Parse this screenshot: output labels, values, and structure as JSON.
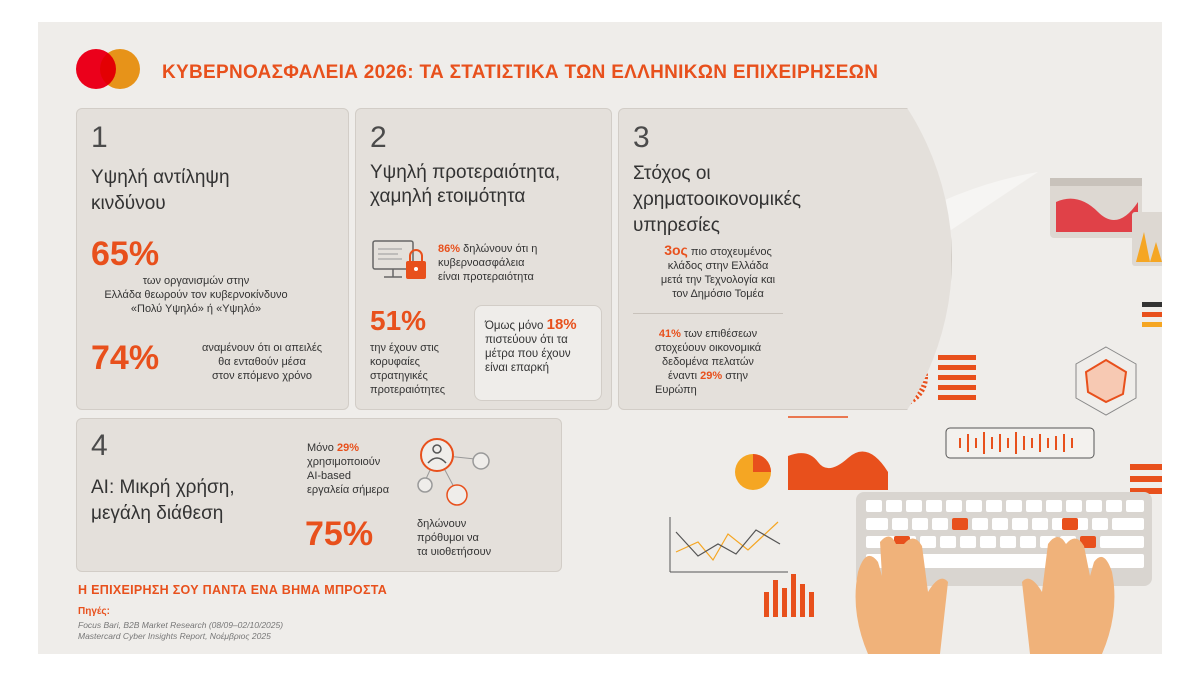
{
  "header": {
    "title": "ΚΥΒΕΡΝΟΑΣΦΑΛΕΙΑ 2026: ΤΑ ΣΤΑΤΙΣΤΙΚΑ ΤΩΝ ΕΛΛΗΝΙΚΩΝ ΕΠΙΧΕΙΡΗΣΕΩΝ"
  },
  "card1": {
    "number": "1",
    "heading_line1": "Υψηλή αντίληψη",
    "heading_line2": "κινδύνου",
    "stat1_value": "65%",
    "stat1_line1": "των οργανισμών στην",
    "stat1_line2": "Ελλάδα θεωρούν τον κυβερνοκίνδυνο",
    "stat1_line3": "«Πολύ Υψηλό» ή «Υψηλό»",
    "stat2_value": "74%",
    "stat2_line1": "αναμένουν ότι οι απειλές",
    "stat2_line2": "θα ενταθούν μέσα",
    "stat2_line3": "στον επόμενο χρόνο"
  },
  "card2": {
    "number": "2",
    "heading_line1": "Υψηλή προτεραιότητα,",
    "heading_line2": "χαμηλή ετοιμότητα",
    "stat1_value": "86%",
    "stat1_line1": "δηλώνουν ότι η",
    "stat1_line2": "κυβερνοασφάλεια",
    "stat1_line3": "είναι προτεραιότητα",
    "stat2_value": "51%",
    "stat2_line1": "την έχουν στις",
    "stat2_line2": "κορυφαίες",
    "stat2_line3": "στρατηγικές",
    "stat2_line4": "προτεραιότητες",
    "box_prefix": "Όμως μόνο",
    "box_value": "18%",
    "box_line1": "πιστεύουν ότι τα",
    "box_line2": "μέτρα που έχουν",
    "box_line3": "είναι επαρκή"
  },
  "card3": {
    "number": "3",
    "heading_line1": "Στόχος οι",
    "heading_line2": "χρηματοοικονομικές",
    "heading_line3": "υπηρεσίες",
    "rank_value": "3ος",
    "rank_line1": "πιο στοχευμένος",
    "rank_line2": "κλάδος στην Ελλάδα",
    "rank_line3": "μετά την Τεχνολογία και",
    "rank_line4": "τον Δημόσιο Τομέα",
    "stat_value": "41%",
    "stat_line1_rest": "των επιθέσεων",
    "stat_line2": "στοχεύουν οικονομικά",
    "stat_line3": "δεδομένα πελατών",
    "stat_line4_pre": "έναντι",
    "stat_line4_value": "29%",
    "stat_line4_post": "στην",
    "stat_line5": "Ευρώπη"
  },
  "card4": {
    "number": "4",
    "heading_line1": "AI: Μικρή χρήση,",
    "heading_line2": "μεγάλη διάθεση",
    "stat1_prefix": "Μόνο",
    "stat1_value": "29%",
    "stat1_line1": "χρησιμοποιούν",
    "stat1_line2": "AI-based",
    "stat1_line3": "εργαλεία σήμερα",
    "stat2_value": "75%",
    "stat2_line1": "δηλώνουν",
    "stat2_line2": "πρόθυμοι να",
    "stat2_line3": "τα υιοθετήσουν"
  },
  "footer": {
    "tagline": "Η ΕΠΙΧΕΙΡΗΣΗ ΣΟΥ ΠΑΝΤΑ ΕΝΑ ΒΗΜΑ ΜΠΡΟΣΤΑ",
    "sources_heading": "Πηγές:",
    "source1": "Focus Bari, B2B Market Research (08/09–02/10/2025)",
    "source2": "Mastercard Cyber Insights Report, Νοέμβριος 2025"
  },
  "colors": {
    "brand_orange": "#e8501c",
    "card_bg": "#e4e0db",
    "page_bg": "#efedea",
    "mastercard_red": "#eb001b",
    "mastercard_yellow": "#f79e1b"
  },
  "icons": [
    "mastercard-logo",
    "computer-lock-icon",
    "ai-network-icon"
  ]
}
